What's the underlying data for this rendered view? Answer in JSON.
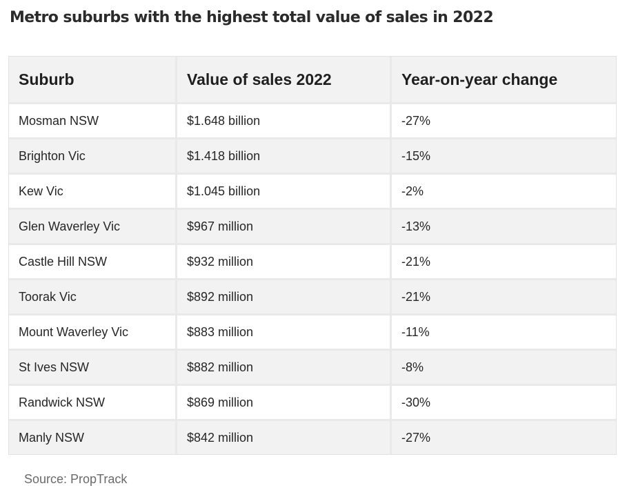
{
  "title": "Metro suburbs with the highest total value of sales in 2022",
  "table": {
    "headers": [
      "Suburb",
      "Value of sales 2022",
      "Year-on-year change"
    ],
    "rows": [
      [
        "Mosman NSW",
        "$1.648 billion",
        "-27%"
      ],
      [
        "Brighton Vic",
        "$1.418 billion",
        "-15%"
      ],
      [
        "Kew Vic",
        "$1.045 billion",
        "-2%"
      ],
      [
        "Glen Waverley Vic",
        "$967 million",
        "-13%"
      ],
      [
        "Castle Hill NSW",
        "$932 million",
        "-21%"
      ],
      [
        "Toorak Vic",
        "$892 million",
        "-21%"
      ],
      [
        "Mount Waverley Vic",
        "$883 million",
        "-11%"
      ],
      [
        "St Ives NSW",
        "$882 million",
        "-8%"
      ],
      [
        "Randwick NSW",
        "$869 million",
        "-30%"
      ],
      [
        "Manly NSW",
        "$842 million",
        "-27%"
      ]
    ]
  },
  "source": "Source: PropTrack"
}
